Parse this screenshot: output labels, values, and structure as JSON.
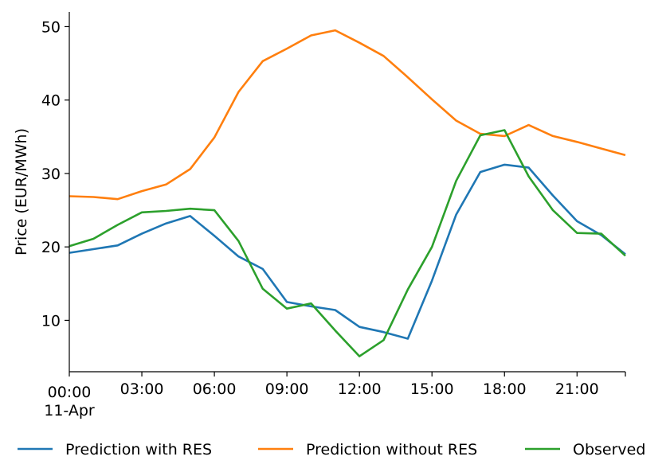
{
  "chart_data": {
    "type": "line",
    "title": "",
    "xlabel": "",
    "ylabel": "Price (EUR/MWh)",
    "x": [
      "00:00",
      "01:00",
      "02:00",
      "03:00",
      "04:00",
      "05:00",
      "06:00",
      "07:00",
      "08:00",
      "09:00",
      "10:00",
      "11:00",
      "12:00",
      "13:00",
      "14:00",
      "15:00",
      "16:00",
      "17:00",
      "18:00",
      "19:00",
      "20:00",
      "21:00",
      "22:00",
      "23:00"
    ],
    "x_ticks": [
      {
        "hour": 0,
        "label": "00:00",
        "sublabel": "11-Apr"
      },
      {
        "hour": 3,
        "label": "03:00"
      },
      {
        "hour": 6,
        "label": "06:00"
      },
      {
        "hour": 9,
        "label": "09:00"
      },
      {
        "hour": 12,
        "label": "12:00"
      },
      {
        "hour": 15,
        "label": "15:00"
      },
      {
        "hour": 18,
        "label": "18:00"
      },
      {
        "hour": 21,
        "label": "21:00"
      }
    ],
    "xlim": [
      0,
      23
    ],
    "ylim": [
      3,
      52
    ],
    "y_ticks": [
      10,
      20,
      30,
      40,
      50
    ],
    "grid": false,
    "legend_position": "bottom",
    "series": [
      {
        "name": "Prediction with RES",
        "color": "#1f77b4",
        "values": [
          19.2,
          19.7,
          20.2,
          21.8,
          23.2,
          24.2,
          21.5,
          18.7,
          17.0,
          12.5,
          11.9,
          11.4,
          9.1,
          8.4,
          7.5,
          15.4,
          24.4,
          30.2,
          31.2,
          30.8,
          27.0,
          23.5,
          21.6,
          19.0
        ]
      },
      {
        "name": "Prediction without RES",
        "color": "#ff7f0e",
        "values": [
          26.9,
          26.8,
          26.5,
          27.6,
          28.5,
          30.6,
          34.9,
          41.1,
          45.3,
          47.0,
          48.8,
          49.5,
          47.8,
          46.0,
          43.1,
          40.1,
          37.2,
          35.4,
          35.1,
          36.6,
          35.1,
          34.3,
          33.4,
          32.5
        ]
      },
      {
        "name": "Observed",
        "color": "#2ca02c",
        "values": [
          20.1,
          21.1,
          23.0,
          24.7,
          24.9,
          25.2,
          25.0,
          20.8,
          14.3,
          11.6,
          12.3,
          8.6,
          5.1,
          7.3,
          14.2,
          20.0,
          29.0,
          35.2,
          35.9,
          29.6,
          25.0,
          21.9,
          21.8,
          18.8
        ]
      }
    ]
  }
}
